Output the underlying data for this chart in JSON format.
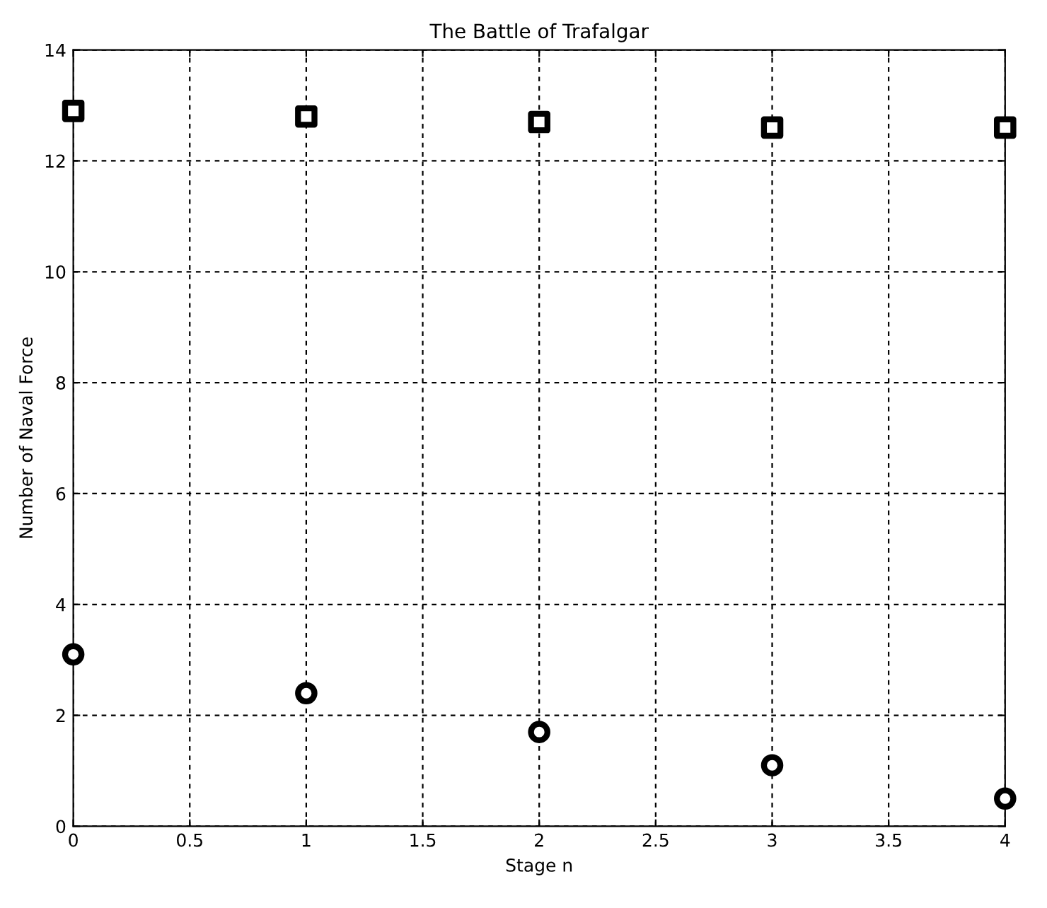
{
  "chart_data": {
    "type": "scatter",
    "title": "The Battle of Trafalgar",
    "xlabel": "Stage n",
    "ylabel": "Number of Naval Force",
    "x": [
      0,
      1,
      2,
      3,
      4
    ],
    "series": [
      {
        "color": "#000000",
        "marker": "square",
        "values": [
          12.9,
          12.8,
          12.7,
          12.6,
          12.6
        ]
      },
      {
        "color": "#000000",
        "marker": "circle",
        "values": [
          3.1,
          2.4,
          1.7,
          1.1,
          0.5
        ]
      }
    ],
    "xlim": [
      0,
      4
    ],
    "xticks": [
      0,
      0.5,
      1,
      1.5,
      2,
      2.5,
      3,
      3.5,
      4
    ],
    "ylim": [
      0,
      14
    ],
    "yticks": [
      0,
      2,
      4,
      6,
      8,
      10,
      12,
      14
    ],
    "grid": true,
    "legend": false
  }
}
